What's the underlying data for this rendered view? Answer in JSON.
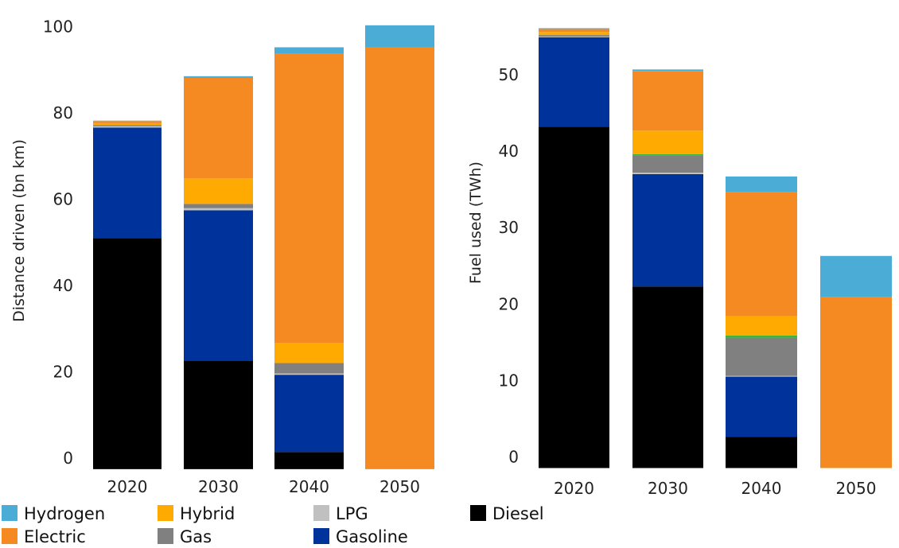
{
  "colors": {
    "Hydrogen": "#4bacd6",
    "Electric": "#f48a21",
    "Hybrid": "#ffaa00",
    "Gas": "#808080",
    "LPG": "#c0c0c0",
    "Gasoline": "#00329b",
    "Diesel": "#000000",
    "Green": "#3cb43c"
  },
  "legend": [
    {
      "name": "Hydrogen",
      "color": "#4bacd6"
    },
    {
      "name": "Hybrid",
      "color": "#ffaa00"
    },
    {
      "name": "LPG",
      "color": "#c0c0c0"
    },
    {
      "name": "Diesel",
      "color": "#000000"
    },
    {
      "name": "Electric",
      "color": "#f48a21"
    },
    {
      "name": "Gas",
      "color": "#808080"
    },
    {
      "name": "Gasoline",
      "color": "#00329b"
    }
  ],
  "chart_data": [
    {
      "type": "bar",
      "stacked": true,
      "categories": [
        "2020",
        "2030",
        "2040",
        "2050"
      ],
      "ylabel": "Distance driven (bn km)",
      "ylim": [
        -1.5,
        101
      ],
      "yticks": [
        0,
        20,
        40,
        60,
        80,
        100
      ],
      "series": [
        {
          "name": "Diesel",
          "values": [
            51,
            22.6,
            1.4,
            0
          ]
        },
        {
          "name": "Gasoline",
          "values": [
            25.6,
            34.8,
            17.9,
            0
          ]
        },
        {
          "name": "LPG",
          "values": [
            0.3,
            0.5,
            0.3,
            0
          ]
        },
        {
          "name": "Gas",
          "values": [
            0.3,
            1.0,
            2.4,
            0
          ]
        },
        {
          "name": "Hybrid",
          "values": [
            0.4,
            5.9,
            4.7,
            0
          ]
        },
        {
          "name": "Electric",
          "values": [
            0.5,
            23.3,
            67.1,
            95.2
          ]
        },
        {
          "name": "Hydrogen",
          "values": [
            0.1,
            0.4,
            1.4,
            5.1
          ]
        }
      ]
    },
    {
      "type": "bar",
      "stacked": true,
      "categories": [
        "2020",
        "2030",
        "2040",
        "2050"
      ],
      "ylabel": "Fuel used (TWh)",
      "ylim": [
        -1.2,
        57.5
      ],
      "yticks": [
        0,
        10,
        20,
        30,
        40,
        50
      ],
      "series": [
        {
          "name": "Diesel",
          "values": [
            43.2,
            22.3,
            2.6,
            0
          ]
        },
        {
          "name": "Gasoline",
          "values": [
            11.7,
            14.7,
            7.9,
            0
          ]
        },
        {
          "name": "LPG",
          "values": [
            0.1,
            0.2,
            0.1,
            0
          ]
        },
        {
          "name": "Gas",
          "values": [
            0.2,
            2.2,
            5.0,
            0
          ]
        },
        {
          "name": "Green",
          "values": [
            0,
            0.2,
            0.3,
            0
          ]
        },
        {
          "name": "Hybrid",
          "values": [
            0.4,
            3.1,
            2.5,
            0
          ]
        },
        {
          "name": "Electric",
          "values": [
            0.4,
            7.8,
            16.3,
            20.9
          ]
        },
        {
          "name": "Hydrogen",
          "values": [
            0.1,
            0.2,
            2.0,
            5.4
          ]
        }
      ]
    }
  ]
}
